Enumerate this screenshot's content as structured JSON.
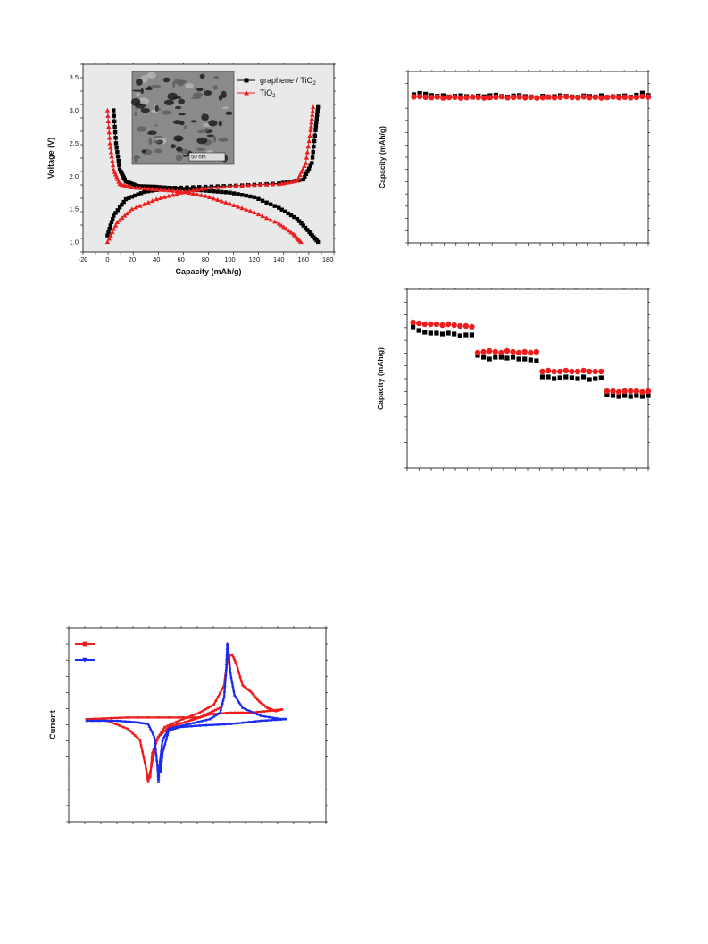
{
  "colors": {
    "black": "#000000",
    "red": "#ee1c1c",
    "blue": "#1c2cee",
    "inset": "#8a8a8a",
    "bg": "#e9e9e9"
  },
  "chart_data": [
    {
      "id": "voltage-profile",
      "type": "line",
      "xlabel": "Capacity (mAh/g)",
      "ylabel": "Voltage (V)",
      "xlim": [
        -20,
        185
      ],
      "ylim": [
        0.85,
        3.7
      ],
      "x_ticks": [
        "-20",
        "0",
        "20",
        "40",
        "60",
        "80",
        "100",
        "120",
        "140",
        "160",
        "180"
      ],
      "y_ticks": [
        "1.0",
        "1.5",
        "2.0",
        "2.5",
        "3.0",
        "3.5"
      ],
      "legend_position": "top-right",
      "inset_label": "50 nm",
      "series": [
        {
          "name": "graphene / TiO",
          "name_sub": "2",
          "color": "black",
          "marker": "square",
          "discharge": [
            [
              5,
              3.0
            ],
            [
              7,
              2.5
            ],
            [
              10,
              2.1
            ],
            [
              15,
              1.92
            ],
            [
              25,
              1.85
            ],
            [
              40,
              1.84
            ],
            [
              60,
              1.81
            ],
            [
              80,
              1.78
            ],
            [
              100,
              1.75
            ],
            [
              120,
              1.68
            ],
            [
              140,
              1.52
            ],
            [
              155,
              1.35
            ],
            [
              165,
              1.15
            ],
            [
              172,
              1.0
            ]
          ],
          "charge": [
            [
              0,
              1.1
            ],
            [
              5,
              1.4
            ],
            [
              15,
              1.65
            ],
            [
              30,
              1.76
            ],
            [
              50,
              1.82
            ],
            [
              80,
              1.84
            ],
            [
              110,
              1.86
            ],
            [
              140,
              1.89
            ],
            [
              160,
              1.95
            ],
            [
              167,
              2.2
            ],
            [
              170,
              2.7
            ],
            [
              172,
              3.05
            ]
          ]
        },
        {
          "name": "TiO",
          "name_sub": "2",
          "color": "red",
          "marker": "triangle",
          "discharge": [
            [
              0,
              3.0
            ],
            [
              2,
              2.5
            ],
            [
              5,
              2.1
            ],
            [
              10,
              1.88
            ],
            [
              20,
              1.83
            ],
            [
              40,
              1.8
            ],
            [
              60,
              1.77
            ],
            [
              80,
              1.7
            ],
            [
              100,
              1.58
            ],
            [
              120,
              1.45
            ],
            [
              140,
              1.28
            ],
            [
              152,
              1.12
            ],
            [
              158,
              1.0
            ]
          ],
          "charge": [
            [
              0,
              1.0
            ],
            [
              8,
              1.3
            ],
            [
              20,
              1.5
            ],
            [
              40,
              1.65
            ],
            [
              60,
              1.75
            ],
            [
              80,
              1.82
            ],
            [
              110,
              1.86
            ],
            [
              140,
              1.88
            ],
            [
              155,
              1.93
            ],
            [
              162,
              2.2
            ],
            [
              166,
              2.7
            ],
            [
              168,
              3.05
            ]
          ]
        }
      ]
    },
    {
      "id": "cycling-stability",
      "type": "scatter",
      "ylabel": "Capacity (mAh/g)",
      "xlim": [
        0,
        41
      ],
      "ylim": [
        0,
        100
      ],
      "series": [
        {
          "color": "black",
          "marker": "square",
          "y": [
            86.5,
            87.2,
            86.8,
            86.0,
            85.6,
            85.9,
            85.2,
            85.6,
            85.9,
            85.4,
            85.0,
            85.7,
            85.3,
            85.9,
            86.2,
            85.5,
            85.1,
            85.8,
            86.0,
            85.4,
            85.2,
            84.7,
            85.6,
            85.0,
            85.4,
            85.9,
            85.6,
            85.2,
            85.0,
            85.8,
            85.5,
            85.2,
            85.9,
            84.9,
            85.3,
            85.5,
            85.8,
            85.1,
            86.2,
            87.4,
            86.0
          ]
        },
        {
          "color": "red",
          "marker": "circle",
          "y": [
            85.2,
            85.4,
            85.0,
            84.8,
            85.1,
            84.6,
            84.9,
            85.0,
            84.5,
            84.8,
            85.2,
            84.9,
            84.6,
            84.8,
            85.0,
            85.3,
            84.7,
            84.9,
            85.1,
            84.7,
            85.0,
            84.5,
            84.8,
            85.1,
            84.7,
            85.0,
            85.3,
            84.9,
            84.7,
            85.2,
            84.8,
            85.0,
            84.6,
            84.9,
            85.2,
            84.8,
            85.0,
            84.7,
            84.9,
            85.4,
            85.1
          ]
        }
      ]
    },
    {
      "id": "rate-capability",
      "type": "scatter",
      "ylabel": "Capacity (mAh/g)",
      "xlim": [
        0,
        41
      ],
      "ylim": [
        0,
        100
      ],
      "series": [
        {
          "color": "black",
          "marker": "square",
          "y": [
            79,
            77,
            76,
            75.5,
            75.5,
            75,
            75.5,
            75,
            74,
            74.5,
            74.5,
            63,
            62,
            61,
            62,
            62,
            61.5,
            62,
            61,
            61,
            60.5,
            60,
            51,
            51,
            50,
            50.5,
            51,
            50.5,
            50,
            51,
            49.5,
            50,
            50.5,
            41,
            40.5,
            40,
            40.5,
            40,
            40.5,
            40,
            40.5
          ]
        },
        {
          "color": "red",
          "marker": "circle",
          "y": [
            81.5,
            81,
            80.5,
            80.5,
            80.5,
            80,
            80.5,
            80,
            79.5,
            79.5,
            79,
            64.5,
            65,
            65.5,
            65,
            64.5,
            65.5,
            65,
            64.5,
            65,
            64.5,
            65,
            54,
            54.5,
            54,
            54,
            54.5,
            54,
            54,
            54.5,
            54,
            54,
            54,
            43,
            43,
            42.5,
            43,
            43,
            43,
            42.5,
            43
          ]
        }
      ]
    },
    {
      "id": "cyclic-voltammetry",
      "type": "line",
      "ylabel": "Current",
      "xlim": [
        0,
        100
      ],
      "ylim": [
        0,
        100
      ],
      "series": [
        {
          "color": "red",
          "marker": "square",
          "outer": [
            [
              0,
              51
            ],
            [
              10,
              50
            ],
            [
              20,
              45
            ],
            [
              26,
              38
            ],
            [
              29,
              20
            ],
            [
              30,
              12
            ],
            [
              31,
              18
            ],
            [
              34,
              38
            ],
            [
              38,
              46
            ],
            [
              45,
              50
            ],
            [
              55,
              55
            ],
            [
              62,
              60
            ],
            [
              67,
              72
            ],
            [
              68,
              82
            ],
            [
              69,
              90
            ],
            [
              71,
              91
            ],
            [
              73,
              85
            ],
            [
              76,
              72
            ],
            [
              80,
              68
            ],
            [
              84,
              62
            ],
            [
              88,
              58
            ],
            [
              92,
              56
            ],
            [
              95,
              57
            ]
          ],
          "inner": [
            [
              95,
              57
            ],
            [
              88,
              56
            ],
            [
              80,
              55
            ],
            [
              70,
              55
            ],
            [
              60,
              54
            ],
            [
              55,
              52
            ],
            [
              50,
              50
            ],
            [
              40,
              46
            ],
            [
              35,
              40
            ],
            [
              32,
              30
            ],
            [
              31,
              15
            ]
          ],
          "base": [
            [
              0,
              51
            ],
            [
              20,
              52
            ],
            [
              45,
              52
            ],
            [
              55,
              52
            ],
            [
              60,
              55
            ],
            [
              65,
              58
            ]
          ]
        },
        {
          "color": "blue",
          "marker": "triangle",
          "outer": [
            [
              0,
              50
            ],
            [
              15,
              50
            ],
            [
              25,
              49
            ],
            [
              30,
              48
            ],
            [
              33,
              40
            ],
            [
              34.5,
              22
            ],
            [
              35,
              12
            ],
            [
              35.5,
              22
            ],
            [
              37,
              38
            ],
            [
              40,
              45
            ],
            [
              50,
              48
            ],
            [
              60,
              51
            ],
            [
              65,
              55
            ],
            [
              67,
              65
            ],
            [
              68,
              82
            ],
            [
              68.5,
              98
            ],
            [
              69,
              95
            ],
            [
              70,
              80
            ],
            [
              72,
              66
            ],
            [
              76,
              58
            ],
            [
              85,
              53
            ],
            [
              95,
              51
            ],
            [
              97,
              51
            ]
          ],
          "inner": [
            [
              97,
              51
            ],
            [
              85,
              50
            ],
            [
              70,
              48
            ],
            [
              55,
              47
            ],
            [
              45,
              46
            ],
            [
              40,
              44
            ],
            [
              37,
              30
            ],
            [
              36,
              18
            ]
          ]
        }
      ]
    }
  ]
}
